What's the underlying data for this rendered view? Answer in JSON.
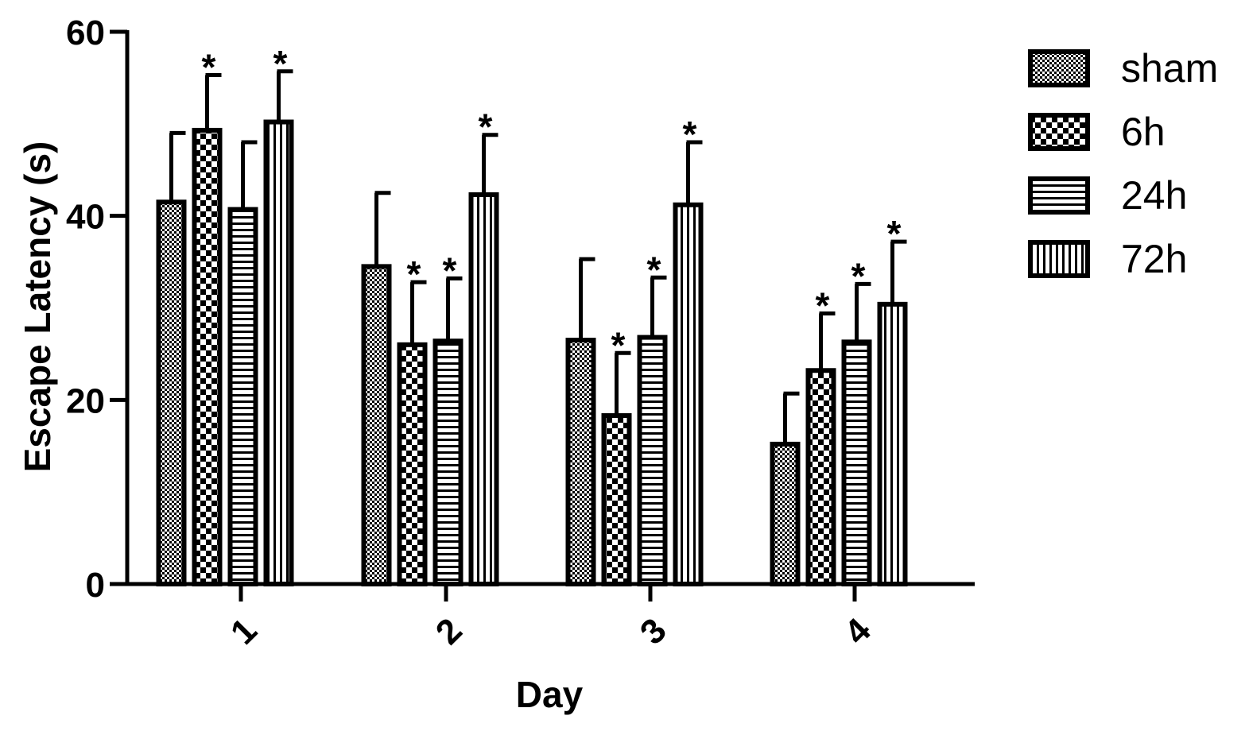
{
  "chart_data": {
    "type": "bar",
    "xlabel": "Day",
    "ylabel": "Escape Latency (s)",
    "categories": [
      "1",
      "2",
      "3",
      "4"
    ],
    "ylim": [
      0,
      60
    ],
    "yticks": [
      0,
      20,
      40,
      60
    ],
    "ytick_labels": [
      "0",
      "20",
      "40",
      "60"
    ],
    "legend_position": "top-right",
    "grid": false,
    "series": [
      {
        "name": "sham",
        "pattern": "checker-fine",
        "values": [
          41.5,
          34.5,
          26.5,
          15.2
        ],
        "errors": [
          7.5,
          8.0,
          8.8,
          5.5
        ],
        "significant": [
          false,
          false,
          false,
          false
        ]
      },
      {
        "name": "6h",
        "pattern": "checker-coarse",
        "values": [
          49.3,
          26.0,
          18.3,
          23.2
        ],
        "errors": [
          6.0,
          6.8,
          6.8,
          6.2
        ],
        "significant": [
          true,
          true,
          true,
          true
        ]
      },
      {
        "name": "24h",
        "pattern": "horizontal-lines",
        "values": [
          40.7,
          26.4,
          26.8,
          26.3
        ],
        "errors": [
          7.3,
          6.8,
          6.5,
          6.3
        ],
        "significant": [
          false,
          true,
          true,
          true
        ]
      },
      {
        "name": "72h",
        "pattern": "vertical-lines",
        "values": [
          50.2,
          42.3,
          41.2,
          30.4
        ],
        "errors": [
          5.5,
          6.5,
          6.8,
          6.8
        ],
        "significant": [
          true,
          true,
          true,
          true
        ]
      }
    ],
    "significance_marker": "*"
  }
}
